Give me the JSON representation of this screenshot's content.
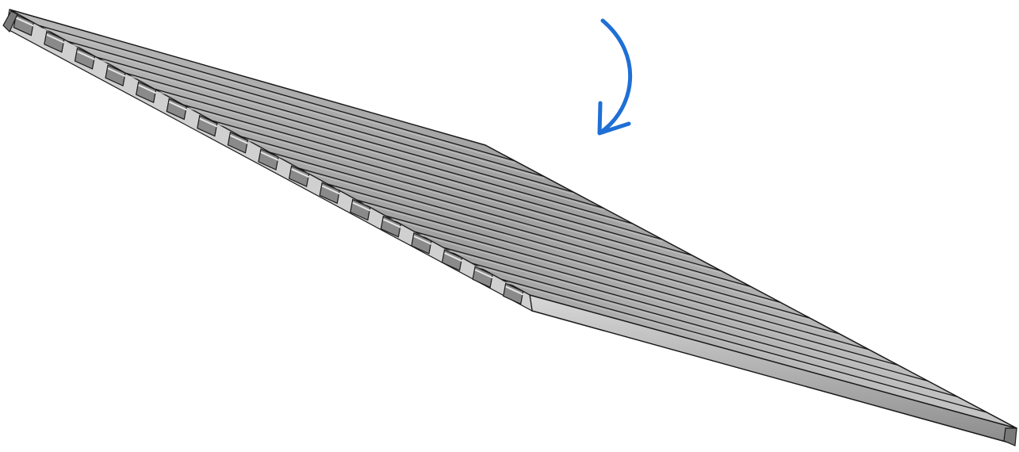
{
  "colors": {
    "background": "#ffffff",
    "outline": "#1a1a1a",
    "top_face": "#9a9a9a",
    "top_face_light": "#c4c4c4",
    "side_face": "#b5b5b5",
    "side_face_dark": "#6e6e6e",
    "web": "#8a8a8a",
    "arrow": "#1f6fd6"
  },
  "icons": {
    "rotation_arrow": "curved-arrow-down-left"
  },
  "model": {
    "deck_slats_visible": 18,
    "support_beams_visible": 17
  }
}
